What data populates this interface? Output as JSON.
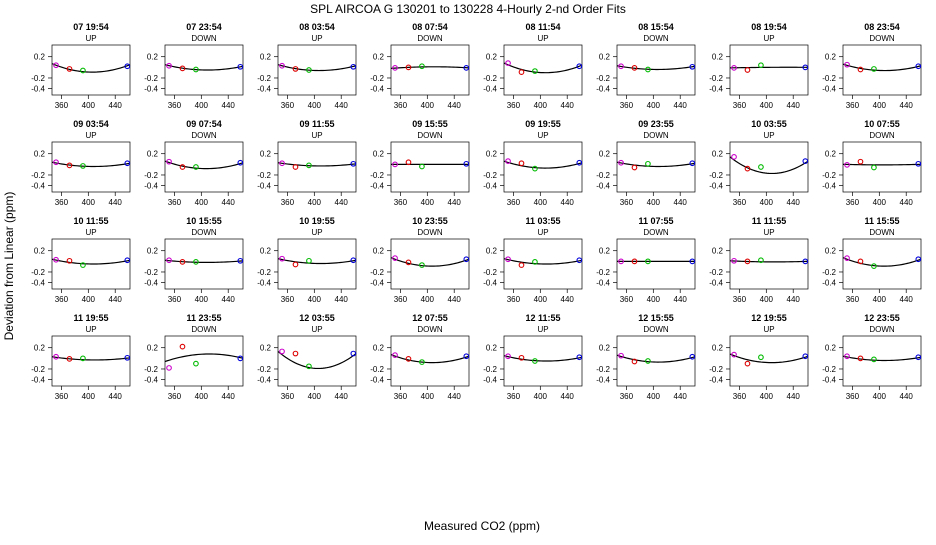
{
  "chart_data": {
    "type": "scatter",
    "title": "SPL   AIRCOA G   130201 to 130228   4-Hourly 2-nd Order Fits",
    "xlabel": "Measured CO2 (ppm)",
    "ylabel": "Deviation from Linear (ppm)",
    "xlim": [
      346,
      462
    ],
    "ylim": [
      -0.52,
      0.42
    ],
    "xticks": [
      "360",
      "400",
      "440"
    ],
    "yticks": [
      "0.2",
      "-0.2",
      "-0.4"
    ],
    "yticks_values": [
      0.2,
      -0.2,
      -0.4
    ],
    "xticks_values": [
      360,
      400,
      440
    ],
    "point_colors": {
      "magenta": "#cc00cc",
      "red": "#dd0000",
      "green": "#00bb00",
      "blue": "#0000dd",
      "curve": "#000000"
    },
    "panels": [
      {
        "label": "07 19:54",
        "dir": "UP",
        "points": [
          [
            352,
            0.04,
            "magenta"
          ],
          [
            372,
            -0.03,
            "red"
          ],
          [
            392,
            -0.06,
            "green"
          ],
          [
            458,
            0.02,
            "blue"
          ]
        ],
        "curve": [
          0.07,
          -0.09,
          0.05
        ]
      },
      {
        "label": "07 23:54",
        "dir": "DOWN",
        "points": [
          [
            352,
            0.03,
            "magenta"
          ],
          [
            372,
            -0.02,
            "red"
          ],
          [
            392,
            -0.04,
            "green"
          ],
          [
            458,
            0.01,
            "blue"
          ]
        ],
        "curve": [
          0.05,
          -0.05,
          0.02
        ]
      },
      {
        "label": "08 03:54",
        "dir": "UP",
        "points": [
          [
            352,
            0.03,
            "magenta"
          ],
          [
            372,
            -0.03,
            "red"
          ],
          [
            392,
            -0.05,
            "green"
          ],
          [
            458,
            0.01,
            "blue"
          ]
        ],
        "curve": [
          0.05,
          -0.06,
          0.03
        ]
      },
      {
        "label": "08 07:54",
        "dir": "DOWN",
        "points": [
          [
            352,
            -0.01,
            "magenta"
          ],
          [
            372,
            0.0,
            "red"
          ],
          [
            392,
            0.02,
            "green"
          ],
          [
            458,
            -0.01,
            "blue"
          ]
        ],
        "curve": [
          -0.02,
          0.01,
          -0.01
        ]
      },
      {
        "label": "08 11:54",
        "dir": "UP",
        "points": [
          [
            352,
            0.08,
            "magenta"
          ],
          [
            372,
            -0.09,
            "red"
          ],
          [
            392,
            -0.07,
            "green"
          ],
          [
            458,
            0.02,
            "blue"
          ]
        ],
        "curve": [
          0.08,
          -0.1,
          0.04
        ]
      },
      {
        "label": "08 15:54",
        "dir": "DOWN",
        "points": [
          [
            352,
            0.02,
            "magenta"
          ],
          [
            372,
            -0.01,
            "red"
          ],
          [
            392,
            -0.04,
            "green"
          ],
          [
            458,
            0.01,
            "blue"
          ]
        ],
        "curve": [
          0.03,
          -0.04,
          0.02
        ]
      },
      {
        "label": "08 19:54",
        "dir": "UP",
        "points": [
          [
            352,
            -0.01,
            "magenta"
          ],
          [
            372,
            -0.05,
            "red"
          ],
          [
            392,
            0.04,
            "green"
          ],
          [
            458,
            0.0,
            "blue"
          ]
        ],
        "curve": [
          -0.01,
          0.0,
          0.0
        ]
      },
      {
        "label": "08 23:54",
        "dir": "DOWN",
        "points": [
          [
            352,
            0.05,
            "magenta"
          ],
          [
            372,
            -0.04,
            "red"
          ],
          [
            392,
            -0.03,
            "green"
          ],
          [
            458,
            0.02,
            "blue"
          ]
        ],
        "curve": [
          0.06,
          -0.06,
          0.03
        ]
      },
      {
        "label": "09 03:54",
        "dir": "UP",
        "points": [
          [
            352,
            0.04,
            "magenta"
          ],
          [
            372,
            -0.02,
            "red"
          ],
          [
            392,
            -0.03,
            "green"
          ],
          [
            458,
            0.02,
            "blue"
          ]
        ],
        "curve": [
          0.04,
          -0.04,
          0.02
        ]
      },
      {
        "label": "09 07:54",
        "dir": "DOWN",
        "points": [
          [
            352,
            0.05,
            "magenta"
          ],
          [
            372,
            -0.05,
            "red"
          ],
          [
            392,
            -0.05,
            "green"
          ],
          [
            458,
            0.03,
            "blue"
          ]
        ],
        "curve": [
          0.06,
          -0.08,
          0.03
        ]
      },
      {
        "label": "09 11:55",
        "dir": "UP",
        "points": [
          [
            352,
            0.02,
            "magenta"
          ],
          [
            372,
            -0.05,
            "red"
          ],
          [
            392,
            -0.02,
            "green"
          ],
          [
            458,
            0.01,
            "blue"
          ]
        ],
        "curve": [
          0.03,
          -0.03,
          0.01
        ]
      },
      {
        "label": "09 15:55",
        "dir": "DOWN",
        "points": [
          [
            352,
            0.0,
            "magenta"
          ],
          [
            372,
            0.04,
            "red"
          ],
          [
            392,
            -0.04,
            "green"
          ],
          [
            458,
            0.01,
            "blue"
          ]
        ],
        "curve": [
          0.0,
          0.0,
          0.0
        ]
      },
      {
        "label": "09 19:55",
        "dir": "UP",
        "points": [
          [
            352,
            0.06,
            "magenta"
          ],
          [
            372,
            0.02,
            "red"
          ],
          [
            392,
            -0.08,
            "green"
          ],
          [
            458,
            0.03,
            "blue"
          ]
        ],
        "curve": [
          0.06,
          -0.07,
          0.03
        ]
      },
      {
        "label": "09 23:55",
        "dir": "DOWN",
        "points": [
          [
            352,
            0.03,
            "magenta"
          ],
          [
            372,
            -0.06,
            "red"
          ],
          [
            392,
            0.01,
            "green"
          ],
          [
            458,
            0.02,
            "blue"
          ]
        ],
        "curve": [
          0.04,
          -0.04,
          0.02
        ]
      },
      {
        "label": "10 03:55",
        "dir": "UP",
        "points": [
          [
            352,
            0.14,
            "magenta"
          ],
          [
            372,
            -0.08,
            "red"
          ],
          [
            392,
            -0.05,
            "green"
          ],
          [
            458,
            0.06,
            "blue"
          ]
        ],
        "curve": [
          0.14,
          -0.17,
          0.06
        ]
      },
      {
        "label": "10 07:55",
        "dir": "DOWN",
        "points": [
          [
            352,
            -0.01,
            "magenta"
          ],
          [
            372,
            0.05,
            "red"
          ],
          [
            392,
            -0.06,
            "green"
          ],
          [
            458,
            0.01,
            "blue"
          ]
        ],
        "curve": [
          0.0,
          -0.01,
          0.0
        ]
      },
      {
        "label": "10 11:55",
        "dir": "UP",
        "points": [
          [
            352,
            0.03,
            "magenta"
          ],
          [
            372,
            0.01,
            "red"
          ],
          [
            392,
            -0.07,
            "green"
          ],
          [
            458,
            0.02,
            "blue"
          ]
        ],
        "curve": [
          0.04,
          -0.05,
          0.02
        ]
      },
      {
        "label": "10 15:55",
        "dir": "DOWN",
        "points": [
          [
            352,
            0.02,
            "magenta"
          ],
          [
            372,
            -0.01,
            "red"
          ],
          [
            392,
            -0.01,
            "green"
          ],
          [
            458,
            0.01,
            "blue"
          ]
        ],
        "curve": [
          0.02,
          -0.02,
          0.01
        ]
      },
      {
        "label": "10 19:55",
        "dir": "UP",
        "points": [
          [
            352,
            0.05,
            "magenta"
          ],
          [
            372,
            -0.06,
            "red"
          ],
          [
            392,
            0.01,
            "green"
          ],
          [
            458,
            0.02,
            "blue"
          ]
        ],
        "curve": [
          0.05,
          -0.04,
          0.02
        ]
      },
      {
        "label": "10 23:55",
        "dir": "DOWN",
        "points": [
          [
            352,
            0.06,
            "magenta"
          ],
          [
            372,
            -0.02,
            "red"
          ],
          [
            392,
            -0.07,
            "green"
          ],
          [
            458,
            0.04,
            "blue"
          ]
        ],
        "curve": [
          0.07,
          -0.09,
          0.04
        ]
      },
      {
        "label": "11 03:55",
        "dir": "UP",
        "points": [
          [
            352,
            0.04,
            "magenta"
          ],
          [
            372,
            -0.07,
            "red"
          ],
          [
            392,
            -0.01,
            "green"
          ],
          [
            458,
            0.02,
            "blue"
          ]
        ],
        "curve": [
          0.05,
          -0.05,
          0.02
        ]
      },
      {
        "label": "11 07:55",
        "dir": "DOWN",
        "points": [
          [
            352,
            0.0,
            "magenta"
          ],
          [
            372,
            0.0,
            "red"
          ],
          [
            392,
            0.0,
            "green"
          ],
          [
            458,
            0.0,
            "blue"
          ]
        ],
        "curve": [
          0.0,
          0.0,
          0.0
        ]
      },
      {
        "label": "11 11:55",
        "dir": "UP",
        "points": [
          [
            352,
            0.01,
            "magenta"
          ],
          [
            372,
            0.0,
            "red"
          ],
          [
            392,
            0.02,
            "green"
          ],
          [
            458,
            0.0,
            "blue"
          ]
        ],
        "curve": [
          0.01,
          -0.01,
          0.0
        ]
      },
      {
        "label": "11 15:55",
        "dir": "DOWN",
        "points": [
          [
            352,
            0.06,
            "magenta"
          ],
          [
            372,
            0.0,
            "red"
          ],
          [
            392,
            -0.09,
            "green"
          ],
          [
            458,
            0.04,
            "blue"
          ]
        ],
        "curve": [
          0.07,
          -0.09,
          0.04
        ]
      },
      {
        "label": "11 19:55",
        "dir": "UP",
        "points": [
          [
            352,
            0.03,
            "magenta"
          ],
          [
            372,
            -0.01,
            "red"
          ],
          [
            392,
            0.0,
            "green"
          ],
          [
            458,
            0.01,
            "blue"
          ]
        ],
        "curve": [
          0.03,
          -0.03,
          0.01
        ]
      },
      {
        "label": "11 23:55",
        "dir": "DOWN",
        "points": [
          [
            352,
            -0.18,
            "magenta"
          ],
          [
            372,
            0.22,
            "red"
          ],
          [
            392,
            -0.1,
            "green"
          ],
          [
            458,
            0.0,
            "blue"
          ]
        ],
        "curve": [
          -0.06,
          0.08,
          0.0
        ]
      },
      {
        "label": "12 03:55",
        "dir": "UP",
        "points": [
          [
            352,
            0.13,
            "magenta"
          ],
          [
            372,
            0.09,
            "red"
          ],
          [
            392,
            -0.15,
            "green"
          ],
          [
            458,
            0.09,
            "blue"
          ]
        ],
        "curve": [
          0.13,
          -0.19,
          0.09
        ]
      },
      {
        "label": "12 07:55",
        "dir": "DOWN",
        "points": [
          [
            352,
            0.06,
            "magenta"
          ],
          [
            372,
            -0.01,
            "red"
          ],
          [
            392,
            -0.07,
            "green"
          ],
          [
            458,
            0.04,
            "blue"
          ]
        ],
        "curve": [
          0.07,
          -0.08,
          0.04
        ]
      },
      {
        "label": "12 11:55",
        "dir": "UP",
        "points": [
          [
            352,
            0.04,
            "magenta"
          ],
          [
            372,
            0.01,
            "red"
          ],
          [
            392,
            -0.05,
            "green"
          ],
          [
            458,
            0.02,
            "blue"
          ]
        ],
        "curve": [
          0.05,
          -0.05,
          0.02
        ]
      },
      {
        "label": "12 15:55",
        "dir": "DOWN",
        "points": [
          [
            352,
            0.05,
            "magenta"
          ],
          [
            372,
            -0.06,
            "red"
          ],
          [
            392,
            -0.05,
            "green"
          ],
          [
            458,
            0.03,
            "blue"
          ]
        ],
        "curve": [
          0.06,
          -0.07,
          0.03
        ]
      },
      {
        "label": "12 19:55",
        "dir": "UP",
        "points": [
          [
            352,
            0.07,
            "magenta"
          ],
          [
            372,
            -0.1,
            "red"
          ],
          [
            392,
            0.02,
            "green"
          ],
          [
            458,
            0.04,
            "blue"
          ]
        ],
        "curve": [
          0.08,
          -0.08,
          0.04
        ]
      },
      {
        "label": "12 23:55",
        "dir": "DOWN",
        "points": [
          [
            352,
            0.04,
            "magenta"
          ],
          [
            372,
            0.0,
            "red"
          ],
          [
            392,
            -0.02,
            "green"
          ],
          [
            458,
            0.02,
            "blue"
          ]
        ],
        "curve": [
          0.04,
          -0.04,
          0.02
        ]
      }
    ]
  }
}
